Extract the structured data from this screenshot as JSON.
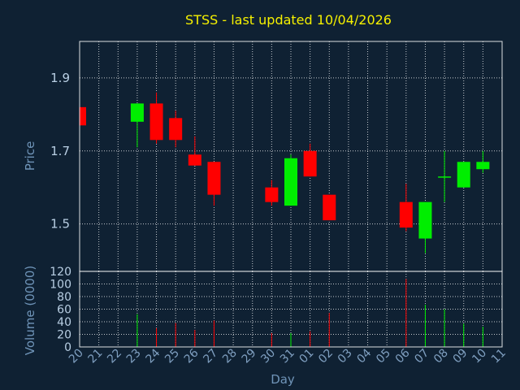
{
  "chart_data": {
    "type": "candlestick",
    "title": "STSS - last updated 10/04/2026",
    "ylabel": "Price",
    "ylim": [
      1.37,
      2.0
    ],
    "yticks": [
      1.5,
      1.7,
      1.9
    ],
    "xlabel": "Day",
    "days": [
      "20",
      "21",
      "22",
      "23",
      "24",
      "25",
      "26",
      "27",
      "28",
      "29",
      "30",
      "31",
      "01",
      "02",
      "03",
      "04",
      "05",
      "06",
      "07",
      "08",
      "09",
      "10",
      "11"
    ],
    "up_color": "#00ee00",
    "down_color": "#ff0000",
    "candles": [
      {
        "day": "20",
        "open": 1.82,
        "high": 1.82,
        "low": 1.77,
        "close": 1.77
      },
      {
        "day": "23",
        "open": 1.78,
        "high": 1.83,
        "low": 1.71,
        "close": 1.83
      },
      {
        "day": "24",
        "open": 1.83,
        "high": 1.86,
        "low": 1.72,
        "close": 1.73
      },
      {
        "day": "25",
        "open": 1.79,
        "high": 1.81,
        "low": 1.71,
        "close": 1.73
      },
      {
        "day": "26",
        "open": 1.69,
        "high": 1.74,
        "low": 1.66,
        "close": 1.66
      },
      {
        "day": "27",
        "open": 1.67,
        "high": 1.67,
        "low": 1.55,
        "close": 1.58
      },
      {
        "day": "30",
        "open": 1.6,
        "high": 1.62,
        "low": 1.55,
        "close": 1.56
      },
      {
        "day": "31",
        "open": 1.55,
        "high": 1.69,
        "low": 1.55,
        "close": 1.68
      },
      {
        "day": "01",
        "open": 1.7,
        "high": 1.72,
        "low": 1.63,
        "close": 1.63
      },
      {
        "day": "02",
        "open": 1.58,
        "high": 1.58,
        "low": 1.51,
        "close": 1.51
      },
      {
        "day": "06",
        "open": 1.56,
        "high": 1.61,
        "low": 1.48,
        "close": 1.49
      },
      {
        "day": "07",
        "open": 1.46,
        "high": 1.56,
        "low": 1.42,
        "close": 1.56
      },
      {
        "day": "08",
        "open": 1.63,
        "high": 1.7,
        "low": 1.56,
        "close": 1.63
      },
      {
        "day": "09",
        "open": 1.6,
        "high": 1.67,
        "low": 1.6,
        "close": 1.67
      },
      {
        "day": "10",
        "open": 1.65,
        "high": 1.7,
        "low": 1.64,
        "close": 1.67
      }
    ],
    "volume": {
      "ylabel": "Volume (0000)",
      "ylim": [
        0,
        120
      ],
      "yticks": [
        0,
        20,
        40,
        60,
        80,
        100,
        120
      ],
      "values": [
        {
          "day": "23",
          "value": 52,
          "dir": "up"
        },
        {
          "day": "24",
          "value": 30,
          "dir": "down"
        },
        {
          "day": "25",
          "value": 38,
          "dir": "down"
        },
        {
          "day": "26",
          "value": 27,
          "dir": "down"
        },
        {
          "day": "27",
          "value": 42,
          "dir": "down"
        },
        {
          "day": "30",
          "value": 22,
          "dir": "down"
        },
        {
          "day": "31",
          "value": 22,
          "dir": "up"
        },
        {
          "day": "01",
          "value": 25,
          "dir": "down"
        },
        {
          "day": "02",
          "value": 54,
          "dir": "down"
        },
        {
          "day": "06",
          "value": 108,
          "dir": "down"
        },
        {
          "day": "07",
          "value": 67,
          "dir": "up"
        },
        {
          "day": "08",
          "value": 60,
          "dir": "up"
        },
        {
          "day": "09",
          "value": 37,
          "dir": "up"
        },
        {
          "day": "10",
          "value": 32,
          "dir": "up"
        }
      ]
    }
  }
}
